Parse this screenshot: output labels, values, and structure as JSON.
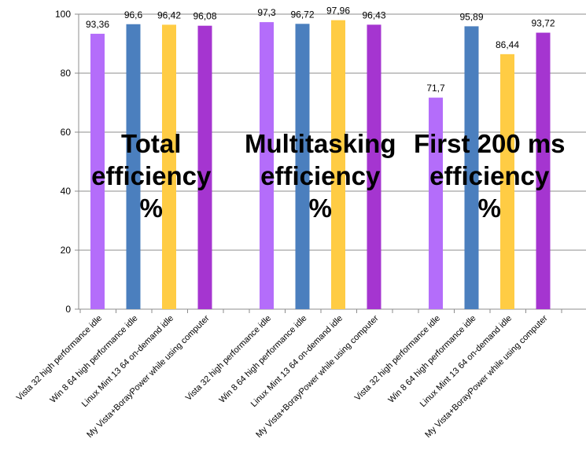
{
  "chart_data": {
    "type": "bar",
    "ylim": [
      0,
      100
    ],
    "yticks": [
      0,
      20,
      40,
      60,
      80,
      100
    ],
    "grid": true,
    "groups": [
      {
        "title": [
          "Total",
          "efficiency",
          "%"
        ],
        "bars": [
          {
            "category": "Vista 32 high performance idle",
            "value": 93.36,
            "label": "93,36",
            "color": "#b46dfa"
          },
          {
            "category": "Win 8 64 high performance idle",
            "value": 96.6,
            "label": "96,6",
            "color": "#4b7fbe"
          },
          {
            "category": "Linux Mint 13 64 on-demand idle",
            "value": 96.42,
            "label": "96,42",
            "color": "#ffcc44"
          },
          {
            "category": "My Vista+BorayPower  while using computer",
            "value": 96.08,
            "label": "96,08",
            "color": "#a535d0"
          }
        ]
      },
      {
        "title": [
          "Multitasking",
          "efficiency",
          "%"
        ],
        "bars": [
          {
            "category": "Vista 32 high performance idle",
            "value": 97.3,
            "label": "97,3",
            "color": "#b46dfa"
          },
          {
            "category": "Win 8 64 high performance idle",
            "value": 96.72,
            "label": "96,72",
            "color": "#4b7fbe"
          },
          {
            "category": "Linux Mint 13 64 on-demand idle",
            "value": 97.96,
            "label": "97,96",
            "color": "#ffcc44"
          },
          {
            "category": "My Vista+BorayPower  while using computer",
            "value": 96.43,
            "label": "96,43",
            "color": "#a535d0"
          }
        ]
      },
      {
        "title": [
          "First 200 ms",
          "efficiency",
          "%"
        ],
        "bars": [
          {
            "category": "Vista 32 high performance idle",
            "value": 71.7,
            "label": "71,7",
            "color": "#b46dfa"
          },
          {
            "category": "Win 8 64 high performance idle",
            "value": 95.89,
            "label": "95,89",
            "color": "#4b7fbe"
          },
          {
            "category": "Linux Mint 13 64 on-demand idle",
            "value": 86.44,
            "label": "86,44",
            "color": "#ffcc44"
          },
          {
            "category": "My Vista+BorayPower  while using computer",
            "value": 93.72,
            "label": "93,72",
            "color": "#a535d0"
          }
        ]
      }
    ]
  }
}
